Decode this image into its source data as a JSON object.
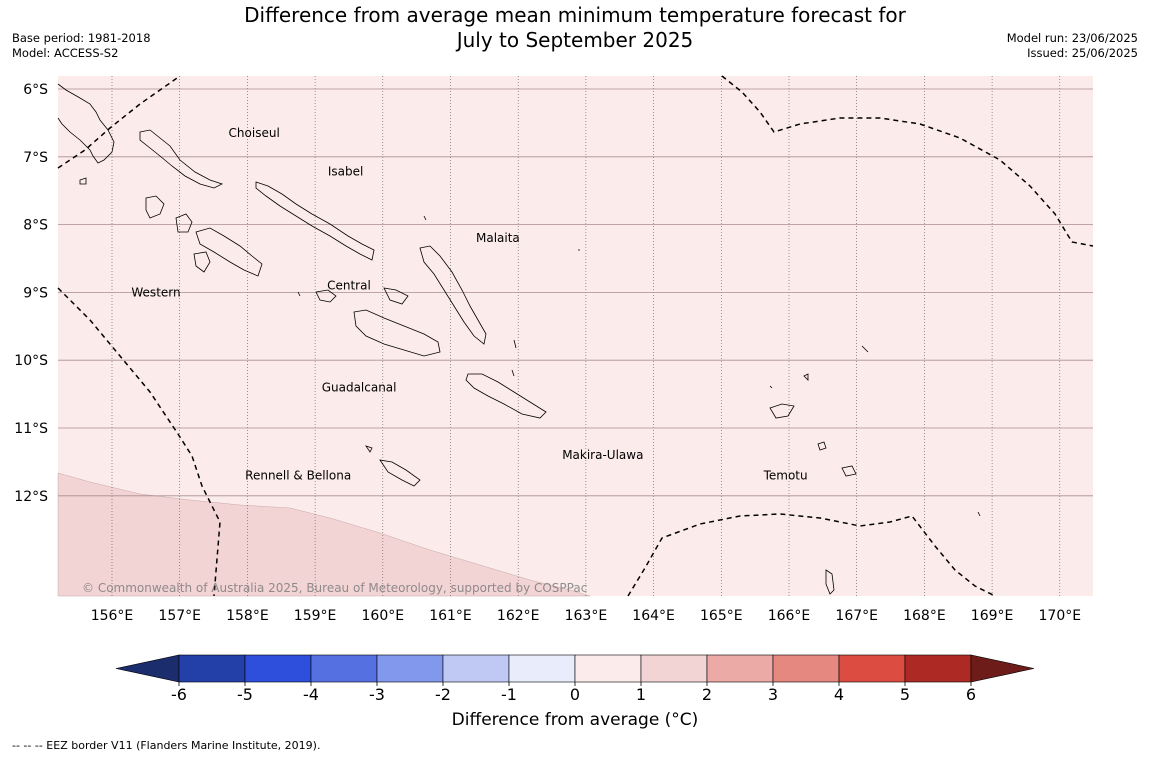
{
  "title_line1": "Difference from average mean minimum temperature forecast for",
  "title_line2": "July to September 2025",
  "base_period": "Base period: 1981-2018",
  "model": "Model: ACCESS-S2",
  "model_run": "Model run: 23/06/2025",
  "issued": "Issued: 25/06/2025",
  "copyright": "© Commonwealth of Australia 2025, Bureau of Meteorology, supported by COSPPac",
  "lon_labels": [
    "156°E",
    "157°E",
    "158°E",
    "159°E",
    "160°E",
    "161°E",
    "162°E",
    "163°E",
    "164°E",
    "165°E",
    "166°E",
    "167°E",
    "168°E",
    "169°E",
    "170°E"
  ],
  "lat_labels": [
    "6°S",
    "7°S",
    "8°S",
    "9°S",
    "10°S",
    "11°S",
    "12°S"
  ],
  "regions": [
    {
      "name": "Choiseul",
      "lon": 158.1,
      "lat": -6.65
    },
    {
      "name": "Isabel",
      "lon": 159.45,
      "lat": -7.22
    },
    {
      "name": "Malaita",
      "lon": 161.7,
      "lat": -8.2
    },
    {
      "name": "Western",
      "lon": 156.65,
      "lat": -9.0
    },
    {
      "name": "Central",
      "lon": 159.5,
      "lat": -8.9
    },
    {
      "name": "Guadalcanal",
      "lon": 159.65,
      "lat": -10.4
    },
    {
      "name": "Makira-Ulawa",
      "lon": 163.25,
      "lat": -11.4
    },
    {
      "name": "Rennell & Bellona",
      "lon": 158.75,
      "lat": -11.7
    },
    {
      "name": "Temotu",
      "lon": 165.95,
      "lat": -11.7
    }
  ],
  "colorbar": {
    "ticks": [
      "-6",
      "-5",
      "-4",
      "-3",
      "-2",
      "-1",
      "0",
      "1",
      "2",
      "3",
      "4",
      "5",
      "6"
    ],
    "colors": [
      "#2340a8",
      "#2e4fdb",
      "#5570e0",
      "#8298ec",
      "#c0c8f4",
      "#e8ecfb",
      "#fcebeb",
      "#f3d4d4",
      "#ebaaa6",
      "#e58880",
      "#dd4c40",
      "#ad2a24"
    ],
    "under_color": "#1c2d6e",
    "over_color": "#6e1c1a",
    "label": "Difference from average (°C)"
  },
  "map_colors": {
    "main": "#fcebeb",
    "south": "#f3d4d4"
  },
  "footnote": "--  --  -- EEZ border V11 (Flanders Marine Institute, 2019)."
}
